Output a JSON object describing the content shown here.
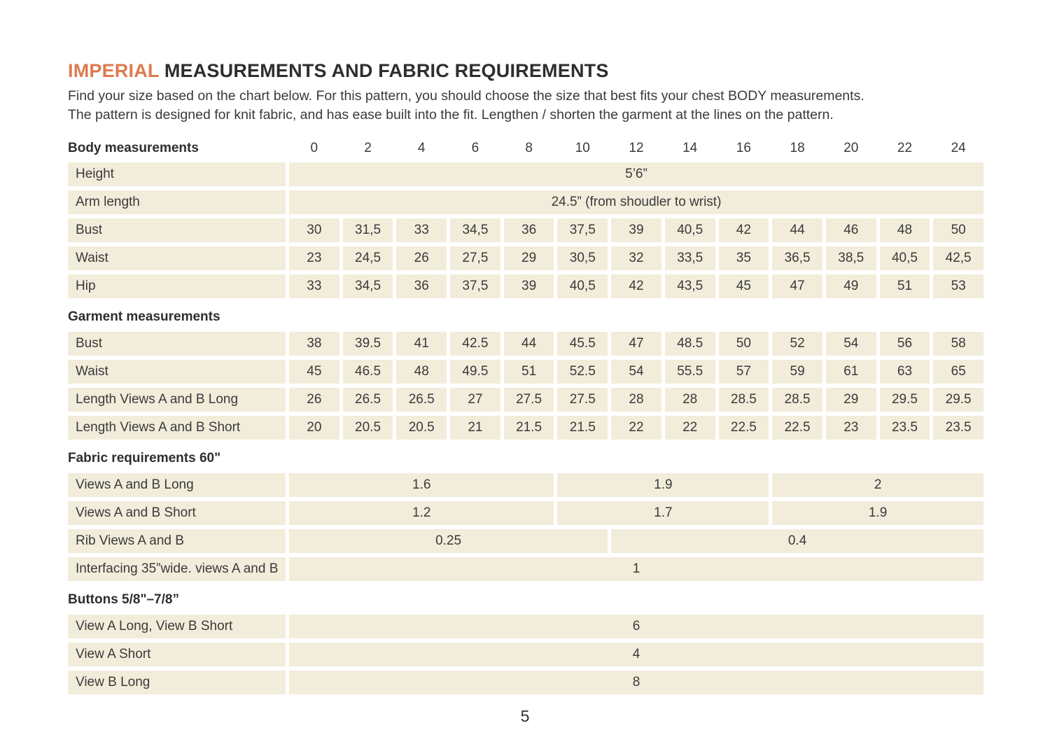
{
  "page": {
    "title_accent": "IMPERIAL",
    "title_rest": " MEASUREMENTS AND FABRIC REQUIREMENTS",
    "intro_line1": "Find your size based on the chart below. For this pattern, you should choose the size that best fits your chest BODY measurements.",
    "intro_line2": "The pattern is designed for knit fabric, and has ease built into the fit. Lengthen / shorten the garment at the lines on the pattern.",
    "page_number": "5"
  },
  "colors": {
    "accent_orange": "#dc7b50",
    "cell_background": "#f2ecdb",
    "text": "#3a3a3a"
  },
  "table": {
    "header": {
      "label": "Body measurements",
      "sizes": [
        "0",
        "2",
        "4",
        "6",
        "8",
        "10",
        "12",
        "14",
        "16",
        "18",
        "20",
        "22",
        "24"
      ]
    },
    "rows": [
      {
        "type": "span-row",
        "label": "Height",
        "spans": [
          {
            "cols": 13,
            "value": "5’6”"
          }
        ]
      },
      {
        "type": "span-row",
        "label": "Arm length",
        "spans": [
          {
            "cols": 13,
            "value": "24.5” (from shoudler to wrist)"
          }
        ]
      },
      {
        "type": "cells-row",
        "label": "Bust",
        "values": [
          "30",
          "31,5",
          "33",
          "34,5",
          "36",
          "37,5",
          "39",
          "40,5",
          "42",
          "44",
          "46",
          "48",
          "50"
        ]
      },
      {
        "type": "cells-row",
        "label": "Waist",
        "values": [
          "23",
          "24,5",
          "26",
          "27,5",
          "29",
          "30,5",
          "32",
          "33,5",
          "35",
          "36,5",
          "38,5",
          "40,5",
          "42,5"
        ]
      },
      {
        "type": "cells-row",
        "label": "Hip",
        "values": [
          "33",
          "34,5",
          "36",
          "37,5",
          "39",
          "40,5",
          "42",
          "43,5",
          "45",
          "47",
          "49",
          "51",
          "53"
        ]
      },
      {
        "type": "section",
        "label": "Garment measurements"
      },
      {
        "type": "cells-row",
        "label": "Bust",
        "values": [
          "38",
          "39.5",
          "41",
          "42.5",
          "44",
          "45.5",
          "47",
          "48.5",
          "50",
          "52",
          "54",
          "56",
          "58"
        ]
      },
      {
        "type": "cells-row",
        "label": "Waist",
        "values": [
          "45",
          "46.5",
          "48",
          "49.5",
          "51",
          "52.5",
          "54",
          "55.5",
          "57",
          "59",
          "61",
          "63",
          "65"
        ]
      },
      {
        "type": "cells-row",
        "label": "Length Views A and B Long",
        "values": [
          "26",
          "26.5",
          "26.5",
          "27",
          "27.5",
          "27.5",
          "28",
          "28",
          "28.5",
          "28.5",
          "29",
          "29.5",
          "29.5"
        ]
      },
      {
        "type": "cells-row",
        "label": "Length Views A and B Short",
        "values": [
          "20",
          "20.5",
          "20.5",
          "21",
          "21.5",
          "21.5",
          "22",
          "22",
          "22.5",
          "22.5",
          "23",
          "23.5",
          "23.5"
        ]
      },
      {
        "type": "section",
        "label": "Fabric requirements 60\""
      },
      {
        "type": "span-row",
        "label": "Views A and B Long",
        "spans": [
          {
            "cols": 5,
            "value": "1.6"
          },
          {
            "cols": 4,
            "value": "1.9"
          },
          {
            "cols": 4,
            "value": "2"
          }
        ]
      },
      {
        "type": "span-row",
        "label": "Views A and B Short",
        "spans": [
          {
            "cols": 5,
            "value": "1.2"
          },
          {
            "cols": 4,
            "value": "1.7"
          },
          {
            "cols": 4,
            "value": "1.9"
          }
        ]
      },
      {
        "type": "span-row",
        "label": "Rib Views A and B",
        "spans": [
          {
            "cols": 6,
            "value": "0.25"
          },
          {
            "cols": 7,
            "value": "0.4"
          }
        ]
      },
      {
        "type": "span-row",
        "label": "Interfacing 35”wide. views A and B",
        "spans": [
          {
            "cols": 13,
            "value": "1"
          }
        ]
      },
      {
        "type": "section",
        "label": "Buttons 5/8\"–7/8”"
      },
      {
        "type": "span-row",
        "label": "View A Long, View B Short",
        "spans": [
          {
            "cols": 13,
            "value": "6"
          }
        ]
      },
      {
        "type": "span-row",
        "label": "View A Short",
        "spans": [
          {
            "cols": 13,
            "value": "4"
          }
        ]
      },
      {
        "type": "span-row",
        "label": "View B Long",
        "spans": [
          {
            "cols": 13,
            "value": "8"
          }
        ]
      }
    ]
  }
}
